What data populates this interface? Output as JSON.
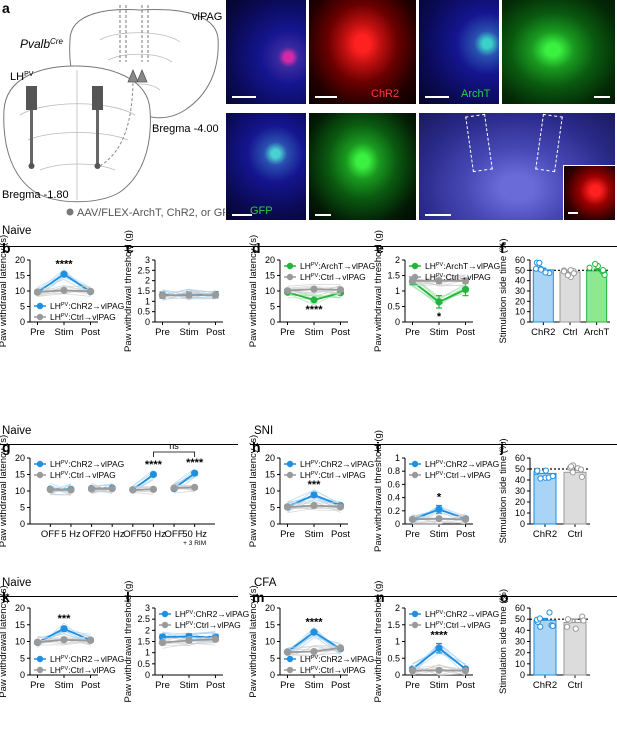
{
  "figure": {
    "panel_a": {
      "letter": "a",
      "mouse_line": "Pvalb",
      "mouse_line_sup": "Cre",
      "lh_label": "LH",
      "lh_sup": "PV",
      "vlpag_label": "vlPAG",
      "bregma_caudal": "Bregma -4.00",
      "bregma_rostral": "Bregma -1.80",
      "virus_legend": "AAV/FLEX-ArchT, ChR2, or GFP",
      "images": {
        "chr2": "ChR2",
        "archt": "ArchT",
        "gfp": "GFP"
      }
    },
    "sections": {
      "naive1": "Naive",
      "naive2": "Naive",
      "sni": "SNI",
      "naive3": "Naive",
      "cfa": "CFA"
    },
    "colors": {
      "chr2": "#1f8fe0",
      "ctrl": "#9a9a9a",
      "archt": "#22b53c",
      "chr2_light": "#a9d4f5",
      "ctrl_light": "#d0d0d0",
      "archt_light": "#a6e3ae",
      "archt_bar": "#8ee88f"
    },
    "legend_text": {
      "lh": "LH",
      "pv": "PV",
      "chr2": ":ChR2→vlPAG",
      "ctrl": ":Ctrl→vlPAG",
      "archt": ":ArchT→vlPAG"
    }
  },
  "chart_data": [
    {
      "id": "b",
      "type": "line",
      "ylabel": "Paw withdrawal latency (s)",
      "ylim": [
        0,
        20
      ],
      "yticks": [
        0,
        5,
        10,
        15,
        20
      ],
      "categories": [
        "Pre",
        "Stim",
        "Post"
      ],
      "series": [
        {
          "name": "chr2",
          "values": [
            9.6,
            15.4,
            9.8
          ],
          "err": [
            0.4,
            0.6,
            0.4
          ]
        },
        {
          "name": "ctrl",
          "values": [
            9.7,
            10.2,
            9.9
          ],
          "err": [
            0.3,
            0.3,
            0.3
          ]
        }
      ],
      "significance": [
        {
          "at": "Stim",
          "text": "****"
        }
      ]
    },
    {
      "id": "c",
      "type": "line",
      "ylabel": "Paw withdrawal threshold (g)",
      "ylim": [
        0,
        3
      ],
      "yticks": [
        0,
        0.5,
        1.0,
        1.5,
        2.0,
        2.5,
        3.0
      ],
      "categories": [
        "Pre",
        "Stim",
        "Post"
      ],
      "series": [
        {
          "name": "chr2",
          "values": [
            1.3,
            1.33,
            1.32
          ],
          "err": [
            0.15,
            0.15,
            0.15
          ]
        },
        {
          "name": "ctrl",
          "values": [
            1.28,
            1.3,
            1.3
          ],
          "err": [
            0.1,
            0.1,
            0.1
          ]
        }
      ]
    },
    {
      "id": "d",
      "type": "line",
      "ylabel": "Paw withdrawal latency (s)",
      "ylim": [
        0,
        20
      ],
      "yticks": [
        0,
        5,
        10,
        15,
        20
      ],
      "categories": [
        "Pre",
        "Stim",
        "Post"
      ],
      "series": [
        {
          "name": "archt",
          "values": [
            9.6,
            7.1,
            9.4
          ],
          "err": [
            0.4,
            0.4,
            0.4
          ]
        },
        {
          "name": "ctrl",
          "values": [
            10.1,
            10.6,
            10.4
          ],
          "err": [
            0.3,
            0.3,
            0.3
          ]
        }
      ],
      "significance": [
        {
          "at": "Stim",
          "text": "****",
          "below": true
        }
      ]
    },
    {
      "id": "e",
      "type": "line",
      "ylabel": "Paw withdrawal threshold (g)",
      "ylim": [
        0,
        2
      ],
      "yticks": [
        0,
        0.5,
        1.0,
        1.5,
        2.0
      ],
      "categories": [
        "Pre",
        "Stim",
        "Post"
      ],
      "series": [
        {
          "name": "archt",
          "values": [
            1.3,
            0.65,
            1.05
          ],
          "err": [
            0.1,
            0.2,
            0.2
          ]
        },
        {
          "name": "ctrl",
          "values": [
            1.33,
            1.33,
            1.33
          ],
          "err": [
            0.08,
            0.08,
            0.08
          ]
        }
      ],
      "significance": [
        {
          "at": "Stim",
          "text": "*",
          "below": true
        }
      ]
    },
    {
      "id": "f",
      "type": "bar",
      "ylabel": "Stimulation side time (%)",
      "ylim": [
        0,
        60
      ],
      "yticks": [
        0,
        10,
        20,
        30,
        40,
        50,
        60
      ],
      "categories": [
        "ChR2",
        "Ctrl",
        "ArchT"
      ],
      "values": [
        50.5,
        48.5,
        49.5
      ],
      "err": [
        1.5,
        1.5,
        1.5
      ],
      "refline": 50
    },
    {
      "id": "g",
      "type": "line",
      "ylabel": "Paw withdrawal latency (s)",
      "ylim": [
        0,
        20
      ],
      "yticks": [
        0,
        5,
        10,
        15,
        20
      ],
      "categories": [
        "OFF",
        "5 Hz",
        "OFF",
        "20 Hz",
        "OFF",
        "50 Hz",
        "OFF",
        "50 Hz"
      ],
      "sublabel": "+ 3 RIM",
      "series": [
        {
          "name": "chr2",
          "values": [
            10.6,
            10.5,
            10.8,
            10.9,
            10.4,
            15.0,
            10.7,
            15.4
          ],
          "err": [
            0.4,
            0.4,
            0.4,
            0.4,
            0.4,
            0.5,
            0.4,
            0.6
          ]
        },
        {
          "name": "ctrl",
          "values": [
            10.4,
            10.3,
            10.6,
            10.7,
            10.3,
            10.5,
            10.9,
            11.1
          ],
          "err": [
            0.3,
            0.3,
            0.3,
            0.3,
            0.3,
            0.3,
            0.3,
            0.3
          ]
        }
      ],
      "significance": [
        {
          "at": 5,
          "text": "****"
        },
        {
          "at": 7,
          "text": "****"
        }
      ],
      "bracket": {
        "from": 5,
        "to": 7,
        "text": "ns"
      }
    },
    {
      "id": "h",
      "type": "line",
      "ylabel": "Paw withdrawal latency (s)",
      "ylim": [
        0,
        20
      ],
      "yticks": [
        0,
        5,
        10,
        15,
        20
      ],
      "categories": [
        "Pre",
        "Stim",
        "Post"
      ],
      "series": [
        {
          "name": "chr2",
          "values": [
            5.2,
            8.8,
            5.6
          ],
          "err": [
            0.4,
            0.6,
            0.4
          ]
        },
        {
          "name": "ctrl",
          "values": [
            5.1,
            5.6,
            5.2
          ],
          "err": [
            0.3,
            0.3,
            0.3
          ]
        }
      ],
      "significance": [
        {
          "at": "Stim",
          "text": "***"
        }
      ]
    },
    {
      "id": "i",
      "type": "line",
      "ylabel": "Paw withdrawal threshold (g)",
      "ylim": [
        0,
        1.0
      ],
      "yticks": [
        0,
        0.2,
        0.4,
        0.6,
        0.8,
        1.0
      ],
      "categories": [
        "Pre",
        "Stim",
        "Post"
      ],
      "series": [
        {
          "name": "chr2",
          "values": [
            0.07,
            0.22,
            0.08
          ],
          "err": [
            0.02,
            0.06,
            0.02
          ]
        },
        {
          "name": "ctrl",
          "values": [
            0.07,
            0.08,
            0.07
          ],
          "err": [
            0.01,
            0.01,
            0.01
          ]
        }
      ],
      "significance": [
        {
          "at": "Stim",
          "text": "*"
        }
      ]
    },
    {
      "id": "j",
      "type": "bar",
      "ylabel": "Stimulation side time (%)",
      "ylim": [
        0,
        60
      ],
      "yticks": [
        0,
        10,
        20,
        30,
        40,
        50,
        60
      ],
      "categories": [
        "ChR2",
        "Ctrl"
      ],
      "values": [
        46,
        47
      ],
      "err": [
        3,
        2
      ],
      "refline": 50
    },
    {
      "id": "k",
      "type": "line",
      "ylabel": "Paw withdrawal latency (s)",
      "ylim": [
        0,
        20
      ],
      "yticks": [
        0,
        5,
        10,
        15,
        20
      ],
      "categories": [
        "Pre",
        "Stim",
        "Post"
      ],
      "series": [
        {
          "name": "chr2",
          "values": [
            9.7,
            13.8,
            10.4
          ],
          "err": [
            0.5,
            0.6,
            0.5
          ]
        },
        {
          "name": "ctrl",
          "values": [
            9.8,
            10.5,
            10.3
          ],
          "err": [
            0.3,
            0.3,
            0.3
          ]
        }
      ],
      "significance": [
        {
          "at": "Stim",
          "text": "***"
        }
      ]
    },
    {
      "id": "l",
      "type": "line",
      "ylabel": "Paw withdrawal threshold (g)",
      "ylim": [
        0,
        3
      ],
      "yticks": [
        0,
        0.5,
        1.0,
        1.5,
        2.0,
        2.5,
        3.0
      ],
      "categories": [
        "Pre",
        "Stim",
        "Post"
      ],
      "series": [
        {
          "name": "chr2",
          "values": [
            1.7,
            1.72,
            1.7
          ],
          "err": [
            0.12,
            0.12,
            0.12
          ]
        },
        {
          "name": "ctrl",
          "values": [
            1.45,
            1.55,
            1.6
          ],
          "err": [
            0.1,
            0.1,
            0.1
          ]
        }
      ]
    },
    {
      "id": "m",
      "type": "line",
      "ylabel": "Paw withdrawal latency (s)",
      "ylim": [
        0,
        20
      ],
      "yticks": [
        0,
        5,
        10,
        15,
        20
      ],
      "categories": [
        "Pre",
        "Stim",
        "Post"
      ],
      "series": [
        {
          "name": "chr2",
          "values": [
            6.9,
            12.8,
            7.8
          ],
          "err": [
            0.3,
            0.5,
            0.4
          ]
        },
        {
          "name": "ctrl",
          "values": [
            6.8,
            7.0,
            8.1
          ],
          "err": [
            0.3,
            0.3,
            0.3
          ]
        }
      ],
      "significance": [
        {
          "at": "Stim",
          "text": "****"
        }
      ]
    },
    {
      "id": "n",
      "type": "line",
      "ylabel": "Paw withdrawal threshold (g)",
      "ylim": [
        0,
        2.0
      ],
      "yticks": [
        0,
        0.5,
        1.0,
        1.5,
        2.0
      ],
      "categories": [
        "Pre",
        "Stim",
        "Post"
      ],
      "series": [
        {
          "name": "chr2",
          "values": [
            0.18,
            0.8,
            0.18
          ],
          "err": [
            0.04,
            0.14,
            0.04
          ]
        },
        {
          "name": "ctrl",
          "values": [
            0.13,
            0.14,
            0.13
          ],
          "err": [
            0.02,
            0.02,
            0.02
          ]
        }
      ],
      "significance": [
        {
          "at": "Stim",
          "text": "****"
        }
      ]
    },
    {
      "id": "o",
      "type": "bar",
      "ylabel": "Stimulation side time (%)",
      "ylim": [
        0,
        60
      ],
      "yticks": [
        0,
        10,
        20,
        30,
        40,
        50,
        60
      ],
      "categories": [
        "ChR2",
        "Ctrl"
      ],
      "values": [
        49,
        47
      ],
      "err": [
        1.5,
        3
      ],
      "refline": 50
    }
  ]
}
